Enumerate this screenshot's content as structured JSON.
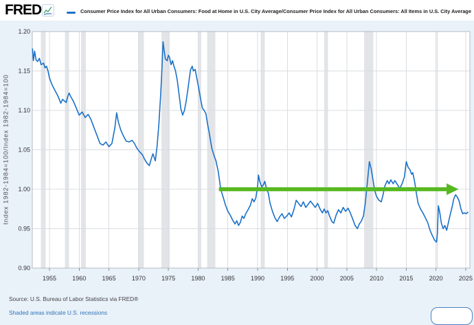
{
  "header": {
    "logo_text": "FRED",
    "legend_label": "Consumer Price Index for All Urban Consumers: Food at Home in U.S. City Average/Consumer Price Index for All Urban Consumers: All Items in U.S. City Average"
  },
  "y_axis": {
    "label": "Index 1982-1984=100/Index 1982-1984=100"
  },
  "footer": {
    "source": "Source: U.S. Bureau of Labor Statistics via FRED®",
    "recession_note": "Shaded areas indicate U.S. recessions"
  },
  "chart_data": {
    "type": "line",
    "title": "Consumer Price Index for All Urban Consumers: Food at Home in U.S. City Average/Consumer Price Index for All Urban Consumers: All Items in U.S. City Average",
    "xlabel": "",
    "ylabel": "Index 1982-1984=100/Index 1982-1984=100",
    "xlim": [
      1952.11,
      2025.7
    ],
    "ylim": [
      0.9,
      1.2
    ],
    "grid": true,
    "xticks": [
      1955,
      1960,
      1965,
      1970,
      1975,
      1980,
      1985,
      1990,
      1995,
      2000,
      2005,
      2010,
      2015,
      2020,
      2025
    ],
    "yticks": [
      {
        "label": "1.20",
        "value": 1.2
      },
      {
        "label": "1.15",
        "value": 1.15
      },
      {
        "label": "1.10",
        "value": 1.1
      },
      {
        "label": "1.05",
        "value": 1.05
      },
      {
        "label": "1.00",
        "value": 1.0
      },
      {
        "label": "0.95",
        "value": 0.95
      },
      {
        "label": "0.90",
        "value": 0.9
      }
    ],
    "colors": {
      "line": "#1a70c8",
      "arrow": "#57b821",
      "recession": "#e2e4e7",
      "grid": "#d9dde1",
      "plot_border": "#b6bcc3",
      "tick": "#8a9097",
      "background": "#e9f1f9",
      "plot_background": "#ffffff"
    },
    "recessions": [
      [
        1953.54,
        1954.37
      ],
      [
        1957.58,
        1958.29
      ],
      [
        1960.29,
        1961.12
      ],
      [
        1969.92,
        1970.87
      ],
      [
        1973.83,
        1975.21
      ],
      [
        1980.0,
        1980.54
      ],
      [
        1981.54,
        1982.87
      ],
      [
        1990.54,
        1991.21
      ],
      [
        2001.21,
        2001.87
      ],
      [
        2007.92,
        2009.46
      ],
      [
        2020.12,
        2020.33
      ]
    ],
    "annotation": {
      "type": "arrow",
      "value": 1.0,
      "from_x": 1983.5,
      "to_x": 2023.8
    },
    "series": [
      {
        "name": "CPI Food at Home / CPI All Items ratio",
        "points": [
          [
            1952.15,
            1.178
          ],
          [
            1952.3,
            1.163
          ],
          [
            1952.5,
            1.175
          ],
          [
            1952.75,
            1.164
          ],
          [
            1953.0,
            1.162
          ],
          [
            1953.3,
            1.166
          ],
          [
            1953.6,
            1.158
          ],
          [
            1954.0,
            1.16
          ],
          [
            1954.25,
            1.154
          ],
          [
            1954.5,
            1.156
          ],
          [
            1954.75,
            1.15
          ],
          [
            1955.0,
            1.141
          ],
          [
            1955.4,
            1.133
          ],
          [
            1955.8,
            1.127
          ],
          [
            1956.3,
            1.12
          ],
          [
            1956.6,
            1.115
          ],
          [
            1956.9,
            1.109
          ],
          [
            1957.2,
            1.114
          ],
          [
            1957.5,
            1.112
          ],
          [
            1957.8,
            1.11
          ],
          [
            1958.1,
            1.118
          ],
          [
            1958.3,
            1.122
          ],
          [
            1958.6,
            1.117
          ],
          [
            1959.0,
            1.112
          ],
          [
            1959.5,
            1.103
          ],
          [
            1960.0,
            1.094
          ],
          [
            1960.5,
            1.098
          ],
          [
            1961.0,
            1.091
          ],
          [
            1961.5,
            1.095
          ],
          [
            1962.0,
            1.088
          ],
          [
            1962.5,
            1.078
          ],
          [
            1963.0,
            1.068
          ],
          [
            1963.5,
            1.058
          ],
          [
            1964.0,
            1.056
          ],
          [
            1964.5,
            1.06
          ],
          [
            1965.0,
            1.054
          ],
          [
            1965.5,
            1.058
          ],
          [
            1966.0,
            1.078
          ],
          [
            1966.3,
            1.097
          ],
          [
            1966.6,
            1.085
          ],
          [
            1967.0,
            1.075
          ],
          [
            1967.4,
            1.068
          ],
          [
            1967.9,
            1.061
          ],
          [
            1968.4,
            1.06
          ],
          [
            1968.9,
            1.062
          ],
          [
            1969.3,
            1.058
          ],
          [
            1969.7,
            1.052
          ],
          [
            1970.1,
            1.048
          ],
          [
            1970.6,
            1.044
          ],
          [
            1971.0,
            1.038
          ],
          [
            1971.4,
            1.033
          ],
          [
            1971.8,
            1.03
          ],
          [
            1972.1,
            1.038
          ],
          [
            1972.4,
            1.045
          ],
          [
            1972.8,
            1.036
          ],
          [
            1973.1,
            1.055
          ],
          [
            1973.4,
            1.083
          ],
          [
            1973.7,
            1.12
          ],
          [
            1973.9,
            1.15
          ],
          [
            1974.1,
            1.187
          ],
          [
            1974.3,
            1.175
          ],
          [
            1974.5,
            1.165
          ],
          [
            1974.8,
            1.163
          ],
          [
            1975.0,
            1.17
          ],
          [
            1975.2,
            1.167
          ],
          [
            1975.45,
            1.158
          ],
          [
            1975.7,
            1.163
          ],
          [
            1975.9,
            1.157
          ],
          [
            1976.2,
            1.15
          ],
          [
            1976.5,
            1.138
          ],
          [
            1976.8,
            1.12
          ],
          [
            1977.1,
            1.102
          ],
          [
            1977.4,
            1.094
          ],
          [
            1977.7,
            1.1
          ],
          [
            1978.0,
            1.112
          ],
          [
            1978.3,
            1.128
          ],
          [
            1978.7,
            1.151
          ],
          [
            1979.0,
            1.156
          ],
          [
            1979.2,
            1.15
          ],
          [
            1979.5,
            1.152
          ],
          [
            1979.8,
            1.14
          ],
          [
            1980.1,
            1.128
          ],
          [
            1980.4,
            1.115
          ],
          [
            1980.7,
            1.103
          ],
          [
            1981.0,
            1.1
          ],
          [
            1981.3,
            1.096
          ],
          [
            1981.6,
            1.082
          ],
          [
            1981.9,
            1.07
          ],
          [
            1982.3,
            1.052
          ],
          [
            1982.7,
            1.042
          ],
          [
            1983.0,
            1.036
          ],
          [
            1983.4,
            1.022
          ],
          [
            1983.8,
            1.0
          ],
          [
            1984.2,
            0.99
          ],
          [
            1984.6,
            0.98
          ],
          [
            1985.0,
            0.972
          ],
          [
            1985.4,
            0.967
          ],
          [
            1985.8,
            0.961
          ],
          [
            1986.2,
            0.956
          ],
          [
            1986.5,
            0.96
          ],
          [
            1986.8,
            0.954
          ],
          [
            1987.1,
            0.958
          ],
          [
            1987.4,
            0.966
          ],
          [
            1987.7,
            0.963
          ],
          [
            1988.0,
            0.969
          ],
          [
            1988.4,
            0.974
          ],
          [
            1988.8,
            0.98
          ],
          [
            1989.1,
            0.988
          ],
          [
            1989.4,
            0.984
          ],
          [
            1989.7,
            0.989
          ],
          [
            1990.0,
            1.004
          ],
          [
            1990.15,
            1.018
          ],
          [
            1990.4,
            1.009
          ],
          [
            1990.7,
            1.003
          ],
          [
            1991.0,
            1.006
          ],
          [
            1991.2,
            1.01
          ],
          [
            1991.5,
            1.001
          ],
          [
            1991.8,
            0.995
          ],
          [
            1992.1,
            0.982
          ],
          [
            1992.5,
            0.972
          ],
          [
            1992.9,
            0.964
          ],
          [
            1993.3,
            0.959
          ],
          [
            1993.7,
            0.965
          ],
          [
            1994.1,
            0.969
          ],
          [
            1994.5,
            0.963
          ],
          [
            1994.9,
            0.966
          ],
          [
            1995.3,
            0.97
          ],
          [
            1995.7,
            0.965
          ],
          [
            1996.1,
            0.974
          ],
          [
            1996.5,
            0.986
          ],
          [
            1996.9,
            0.982
          ],
          [
            1997.3,
            0.978
          ],
          [
            1997.7,
            0.984
          ],
          [
            1998.1,
            0.977
          ],
          [
            1998.5,
            0.981
          ],
          [
            1998.9,
            0.985
          ],
          [
            1999.3,
            0.981
          ],
          [
            1999.7,
            0.977
          ],
          [
            2000.1,
            0.982
          ],
          [
            2000.5,
            0.975
          ],
          [
            2000.9,
            0.97
          ],
          [
            2001.2,
            0.975
          ],
          [
            2001.5,
            0.97
          ],
          [
            2001.8,
            0.973
          ],
          [
            2002.1,
            0.966
          ],
          [
            2002.5,
            0.959
          ],
          [
            2002.8,
            0.957
          ],
          [
            2003.2,
            0.967
          ],
          [
            2003.6,
            0.974
          ],
          [
            2004.0,
            0.97
          ],
          [
            2004.4,
            0.977
          ],
          [
            2004.8,
            0.972
          ],
          [
            2005.2,
            0.976
          ],
          [
            2005.6,
            0.97
          ],
          [
            2006.0,
            0.962
          ],
          [
            2006.4,
            0.954
          ],
          [
            2006.8,
            0.95
          ],
          [
            2007.1,
            0.956
          ],
          [
            2007.4,
            0.959
          ],
          [
            2007.8,
            0.966
          ],
          [
            2008.1,
            0.982
          ],
          [
            2008.45,
            1.008
          ],
          [
            2008.8,
            1.035
          ],
          [
            2009.1,
            1.026
          ],
          [
            2009.4,
            1.012
          ],
          [
            2009.7,
            0.998
          ],
          [
            2010.0,
            0.991
          ],
          [
            2010.4,
            0.986
          ],
          [
            2010.8,
            0.984
          ],
          [
            2011.1,
            0.993
          ],
          [
            2011.4,
            1.004
          ],
          [
            2011.8,
            1.011
          ],
          [
            2012.1,
            1.007
          ],
          [
            2012.4,
            1.012
          ],
          [
            2012.8,
            1.007
          ],
          [
            2013.1,
            1.011
          ],
          [
            2013.5,
            1.006
          ],
          [
            2013.9,
            1.001
          ],
          [
            2014.3,
            1.007
          ],
          [
            2014.7,
            1.016
          ],
          [
            2015.0,
            1.035
          ],
          [
            2015.3,
            1.028
          ],
          [
            2015.6,
            1.025
          ],
          [
            2015.9,
            1.019
          ],
          [
            2016.1,
            1.021
          ],
          [
            2016.4,
            1.01
          ],
          [
            2016.7,
            0.995
          ],
          [
            2017.0,
            0.982
          ],
          [
            2017.4,
            0.975
          ],
          [
            2017.8,
            0.97
          ],
          [
            2018.2,
            0.964
          ],
          [
            2018.6,
            0.958
          ],
          [
            2019.0,
            0.948
          ],
          [
            2019.4,
            0.941
          ],
          [
            2019.8,
            0.935
          ],
          [
            2020.1,
            0.933
          ],
          [
            2020.25,
            0.945
          ],
          [
            2020.4,
            0.979
          ],
          [
            2020.6,
            0.972
          ],
          [
            2020.9,
            0.957
          ],
          [
            2021.2,
            0.95
          ],
          [
            2021.5,
            0.954
          ],
          [
            2021.8,
            0.948
          ],
          [
            2022.1,
            0.958
          ],
          [
            2022.4,
            0.968
          ],
          [
            2022.7,
            0.977
          ],
          [
            2023.0,
            0.988
          ],
          [
            2023.3,
            0.993
          ],
          [
            2023.6,
            0.99
          ],
          [
            2023.9,
            0.985
          ],
          [
            2024.2,
            0.975
          ],
          [
            2024.5,
            0.969
          ],
          [
            2024.8,
            0.97
          ],
          [
            2025.1,
            0.969
          ],
          [
            2025.35,
            0.971
          ]
        ]
      }
    ]
  }
}
